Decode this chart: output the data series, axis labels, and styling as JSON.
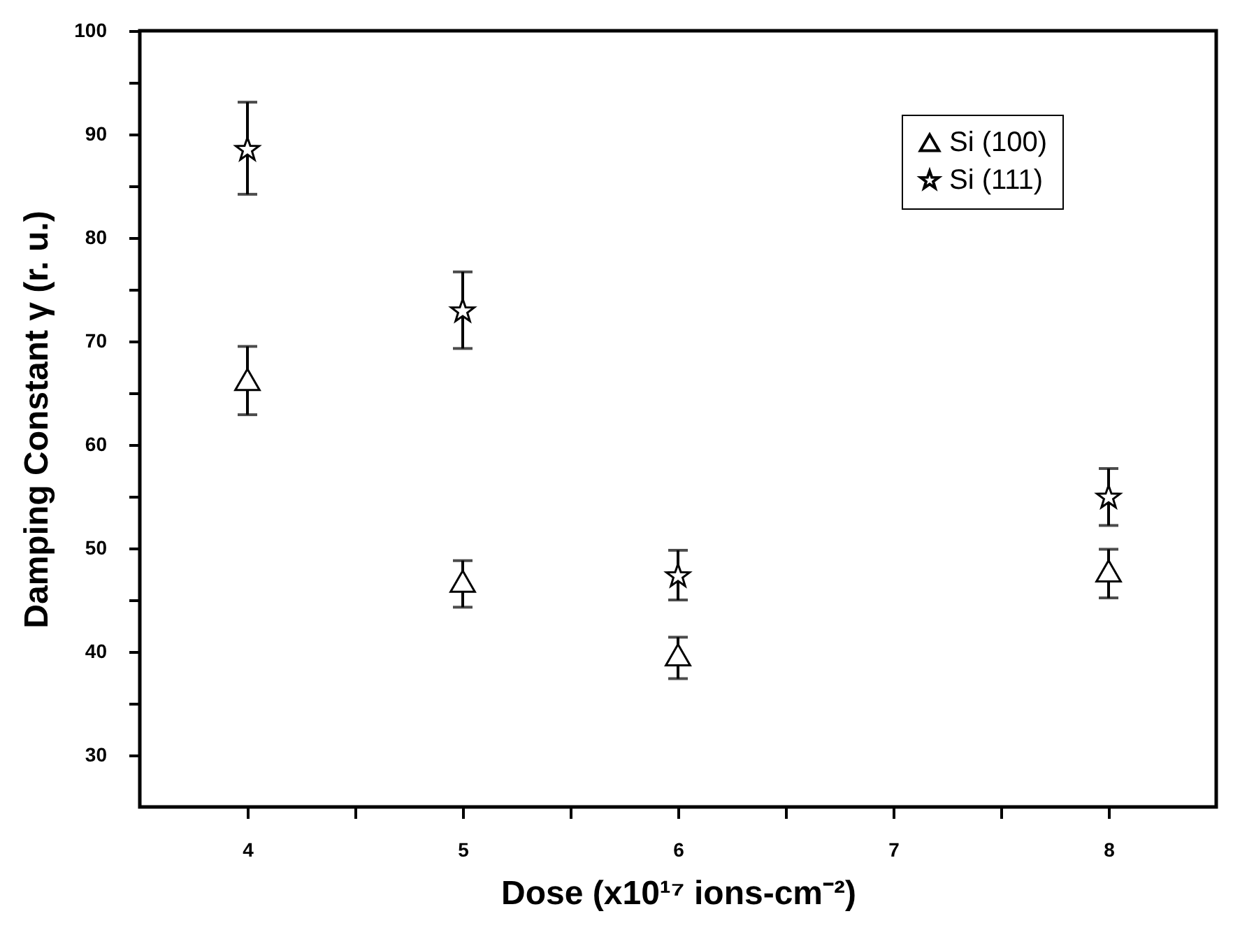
{
  "chart_data": {
    "type": "scatter",
    "xlabel": "Dose (x10¹⁷ ions-cm⁻²)",
    "ylabel": "Damping Constant γ (r. u.)",
    "xlim": [
      3.5,
      8.5
    ],
    "xticks": [
      4,
      {
        "value": 4.5,
        "label": null
      },
      5,
      {
        "value": 5.5,
        "label": null
      },
      6,
      {
        "value": 6.5,
        "label": null
      },
      7,
      {
        "value": 7.5,
        "label": null
      },
      8
    ],
    "ylim": [
      25,
      100
    ],
    "yticks": [
      30,
      {
        "value": 35,
        "label": null
      },
      40,
      {
        "value": 45,
        "label": null
      },
      50,
      {
        "value": 55,
        "label": null
      },
      60,
      {
        "value": 65,
        "label": null
      },
      70,
      {
        "value": 75,
        "label": null
      },
      80,
      {
        "value": 85,
        "label": null
      },
      90,
      {
        "value": 95,
        "label": null
      },
      100
    ],
    "grid": false,
    "legend": "top right",
    "series": [
      {
        "name": "Si (100)",
        "color": "#000000",
        "marker": "triangle",
        "x": [
          4,
          5,
          6,
          8
        ],
        "values": [
          66.3,
          46.8,
          39.7,
          47.8
        ],
        "errors": [
          [
            62.9,
            69.5
          ],
          [
            44.3,
            48.8
          ],
          [
            37.4,
            41.4
          ],
          [
            45.2,
            49.9
          ]
        ]
      },
      {
        "name": "Si (111)",
        "color": "#000000",
        "marker": "star",
        "x": [
          4,
          5,
          6,
          8
        ],
        "values": [
          88.5,
          72.9,
          47.3,
          54.9
        ],
        "errors": [
          [
            84.2,
            93.1
          ],
          [
            69.3,
            76.7
          ],
          [
            45.0,
            49.8
          ],
          [
            52.2,
            57.7
          ]
        ]
      }
    ]
  }
}
